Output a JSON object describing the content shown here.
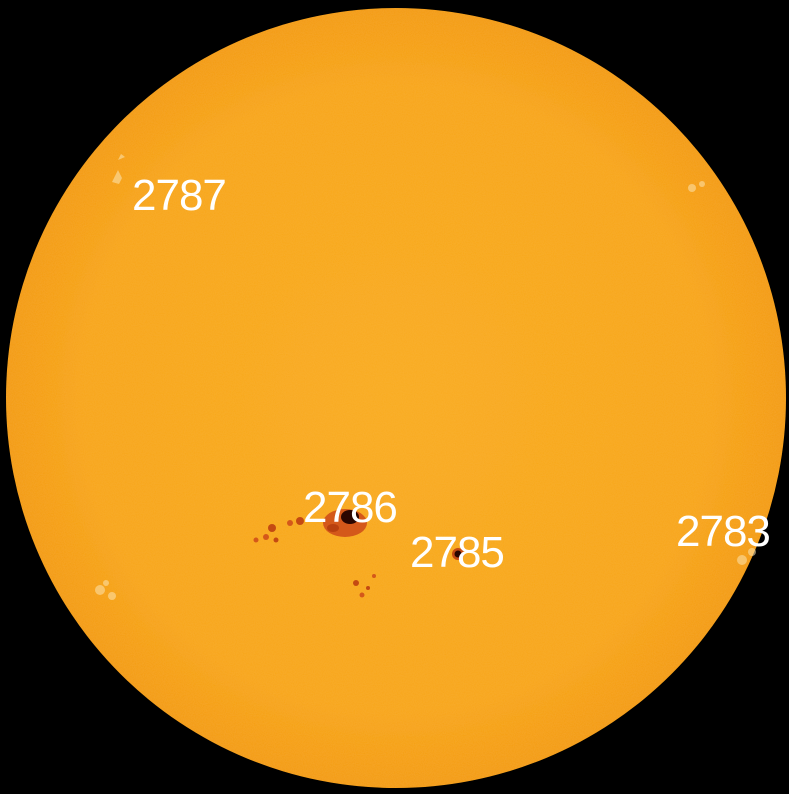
{
  "image": {
    "background_color": "#000000",
    "disk_color": "#F8A51C",
    "spot_color_dark": "#3a0a00",
    "spot_color_penumbra": "#d4581a",
    "faculae_color": "#fbd89a"
  },
  "regions": [
    {
      "number": "2787"
    },
    {
      "number": "2786"
    },
    {
      "number": "2785"
    },
    {
      "number": "2783"
    }
  ]
}
